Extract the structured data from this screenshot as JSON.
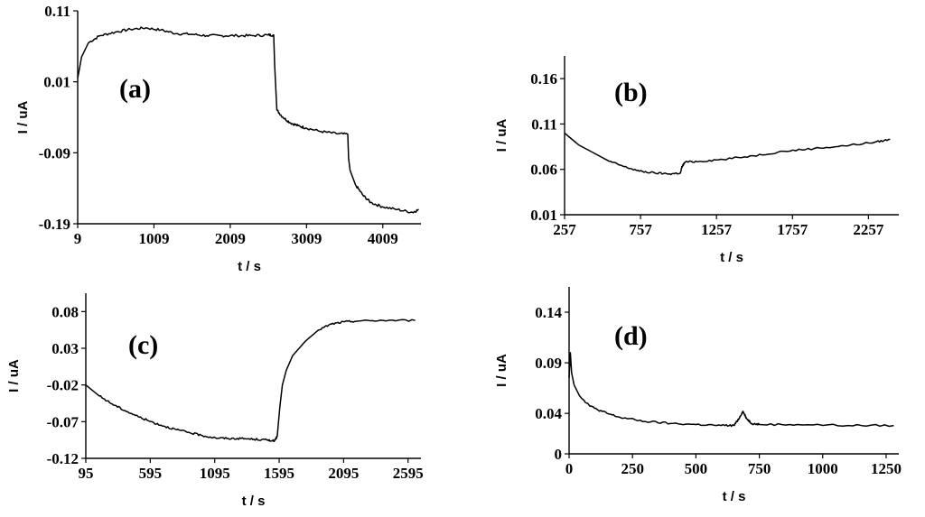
{
  "chart_data": [
    {
      "type": "line",
      "panel_label": "(a)",
      "xlabel": "t / s",
      "ylabel": "I / uA",
      "xlim": [
        9,
        4509
      ],
      "ylim": [
        -0.19,
        0.11
      ],
      "xticks": [
        "9",
        "1009",
        "2009",
        "3009",
        "4009"
      ],
      "yticks": [
        "-0.19",
        "-0.09",
        "0.01",
        "0.11"
      ],
      "series": [
        {
          "x": [
            9,
            60,
            150,
            300,
            500,
            700,
            900,
            1100,
            1300,
            1500,
            1700,
            1900,
            2100,
            2300,
            2500,
            2579,
            2590,
            2620,
            2700,
            2800,
            2900,
            3000,
            3200,
            3400,
            3550,
            3560,
            3580,
            3650,
            3750,
            3850,
            4000,
            4200,
            4400,
            4480
          ],
          "y": [
            0.015,
            0.045,
            0.065,
            0.075,
            0.08,
            0.084,
            0.086,
            0.083,
            0.078,
            0.077,
            0.075,
            0.075,
            0.075,
            0.075,
            0.076,
            0.076,
            0.035,
            -0.03,
            -0.04,
            -0.048,
            -0.052,
            -0.055,
            -0.06,
            -0.063,
            -0.064,
            -0.098,
            -0.115,
            -0.135,
            -0.15,
            -0.16,
            -0.166,
            -0.17,
            -0.174,
            -0.17
          ]
        }
      ]
    },
    {
      "type": "line",
      "panel_label": "(b)",
      "xlabel": "t / s",
      "ylabel": "I / uA",
      "xlim": [
        257,
        2457
      ],
      "ylim": [
        0.01,
        0.185
      ],
      "xticks": [
        "257",
        "757",
        "1257",
        "1757",
        "2257"
      ],
      "yticks": [
        "0.01",
        "0.06",
        "0.11",
        "0.16"
      ],
      "series": [
        {
          "x": [
            257,
            350,
            450,
            550,
            650,
            750,
            850,
            950,
            1020,
            1030,
            1050,
            1150,
            1300,
            1500,
            1700,
            1900,
            2100,
            2300,
            2400
          ],
          "y": [
            0.1,
            0.087,
            0.078,
            0.069,
            0.063,
            0.058,
            0.056,
            0.055,
            0.056,
            0.063,
            0.068,
            0.069,
            0.071,
            0.075,
            0.08,
            0.083,
            0.086,
            0.09,
            0.093
          ]
        }
      ]
    },
    {
      "type": "line",
      "panel_label": "(c)",
      "xlabel": "t / s",
      "ylabel": "I / uA",
      "xlim": [
        95,
        2695
      ],
      "ylim": [
        -0.12,
        0.105
      ],
      "xticks": [
        "95",
        "595",
        "1095",
        "1595",
        "2095",
        "2595"
      ],
      "yticks": [
        "-0.12",
        "-0.07",
        "-0.02",
        "0.03",
        "0.08"
      ],
      "series": [
        {
          "x": [
            95,
            200,
            300,
            400,
            500,
            600,
            700,
            800,
            900,
            1000,
            1100,
            1200,
            1300,
            1400,
            1500,
            1560,
            1580,
            1600,
            1620,
            1650,
            1700,
            1800,
            1900,
            2000,
            2100,
            2200,
            2400,
            2650
          ],
          "y": [
            -0.02,
            -0.035,
            -0.046,
            -0.055,
            -0.063,
            -0.07,
            -0.076,
            -0.081,
            -0.085,
            -0.089,
            -0.092,
            -0.093,
            -0.093,
            -0.094,
            -0.095,
            -0.096,
            -0.09,
            -0.05,
            -0.02,
            0.0,
            0.02,
            0.04,
            0.055,
            0.063,
            0.066,
            0.067,
            0.068,
            0.068
          ]
        }
      ]
    },
    {
      "type": "line",
      "panel_label": "(d)",
      "xlabel": "t / s",
      "ylabel": "I / uA",
      "xlim": [
        0,
        1300
      ],
      "ylim": [
        0,
        0.165
      ],
      "xticks": [
        "0",
        "250",
        "500",
        "750",
        "1000",
        "1250"
      ],
      "yticks": [
        "0",
        "0.04",
        "0.09",
        "0.14"
      ],
      "series": [
        {
          "x": [
            0,
            5,
            10,
            20,
            40,
            70,
            100,
            150,
            200,
            300,
            400,
            500,
            600,
            650,
            670,
            685,
            700,
            720,
            750,
            900,
            1100,
            1280
          ],
          "y": [
            0.075,
            0.1,
            0.08,
            0.068,
            0.058,
            0.05,
            0.045,
            0.04,
            0.036,
            0.032,
            0.03,
            0.029,
            0.028,
            0.028,
            0.035,
            0.042,
            0.035,
            0.03,
            0.029,
            0.029,
            0.028,
            0.028
          ]
        }
      ]
    }
  ]
}
